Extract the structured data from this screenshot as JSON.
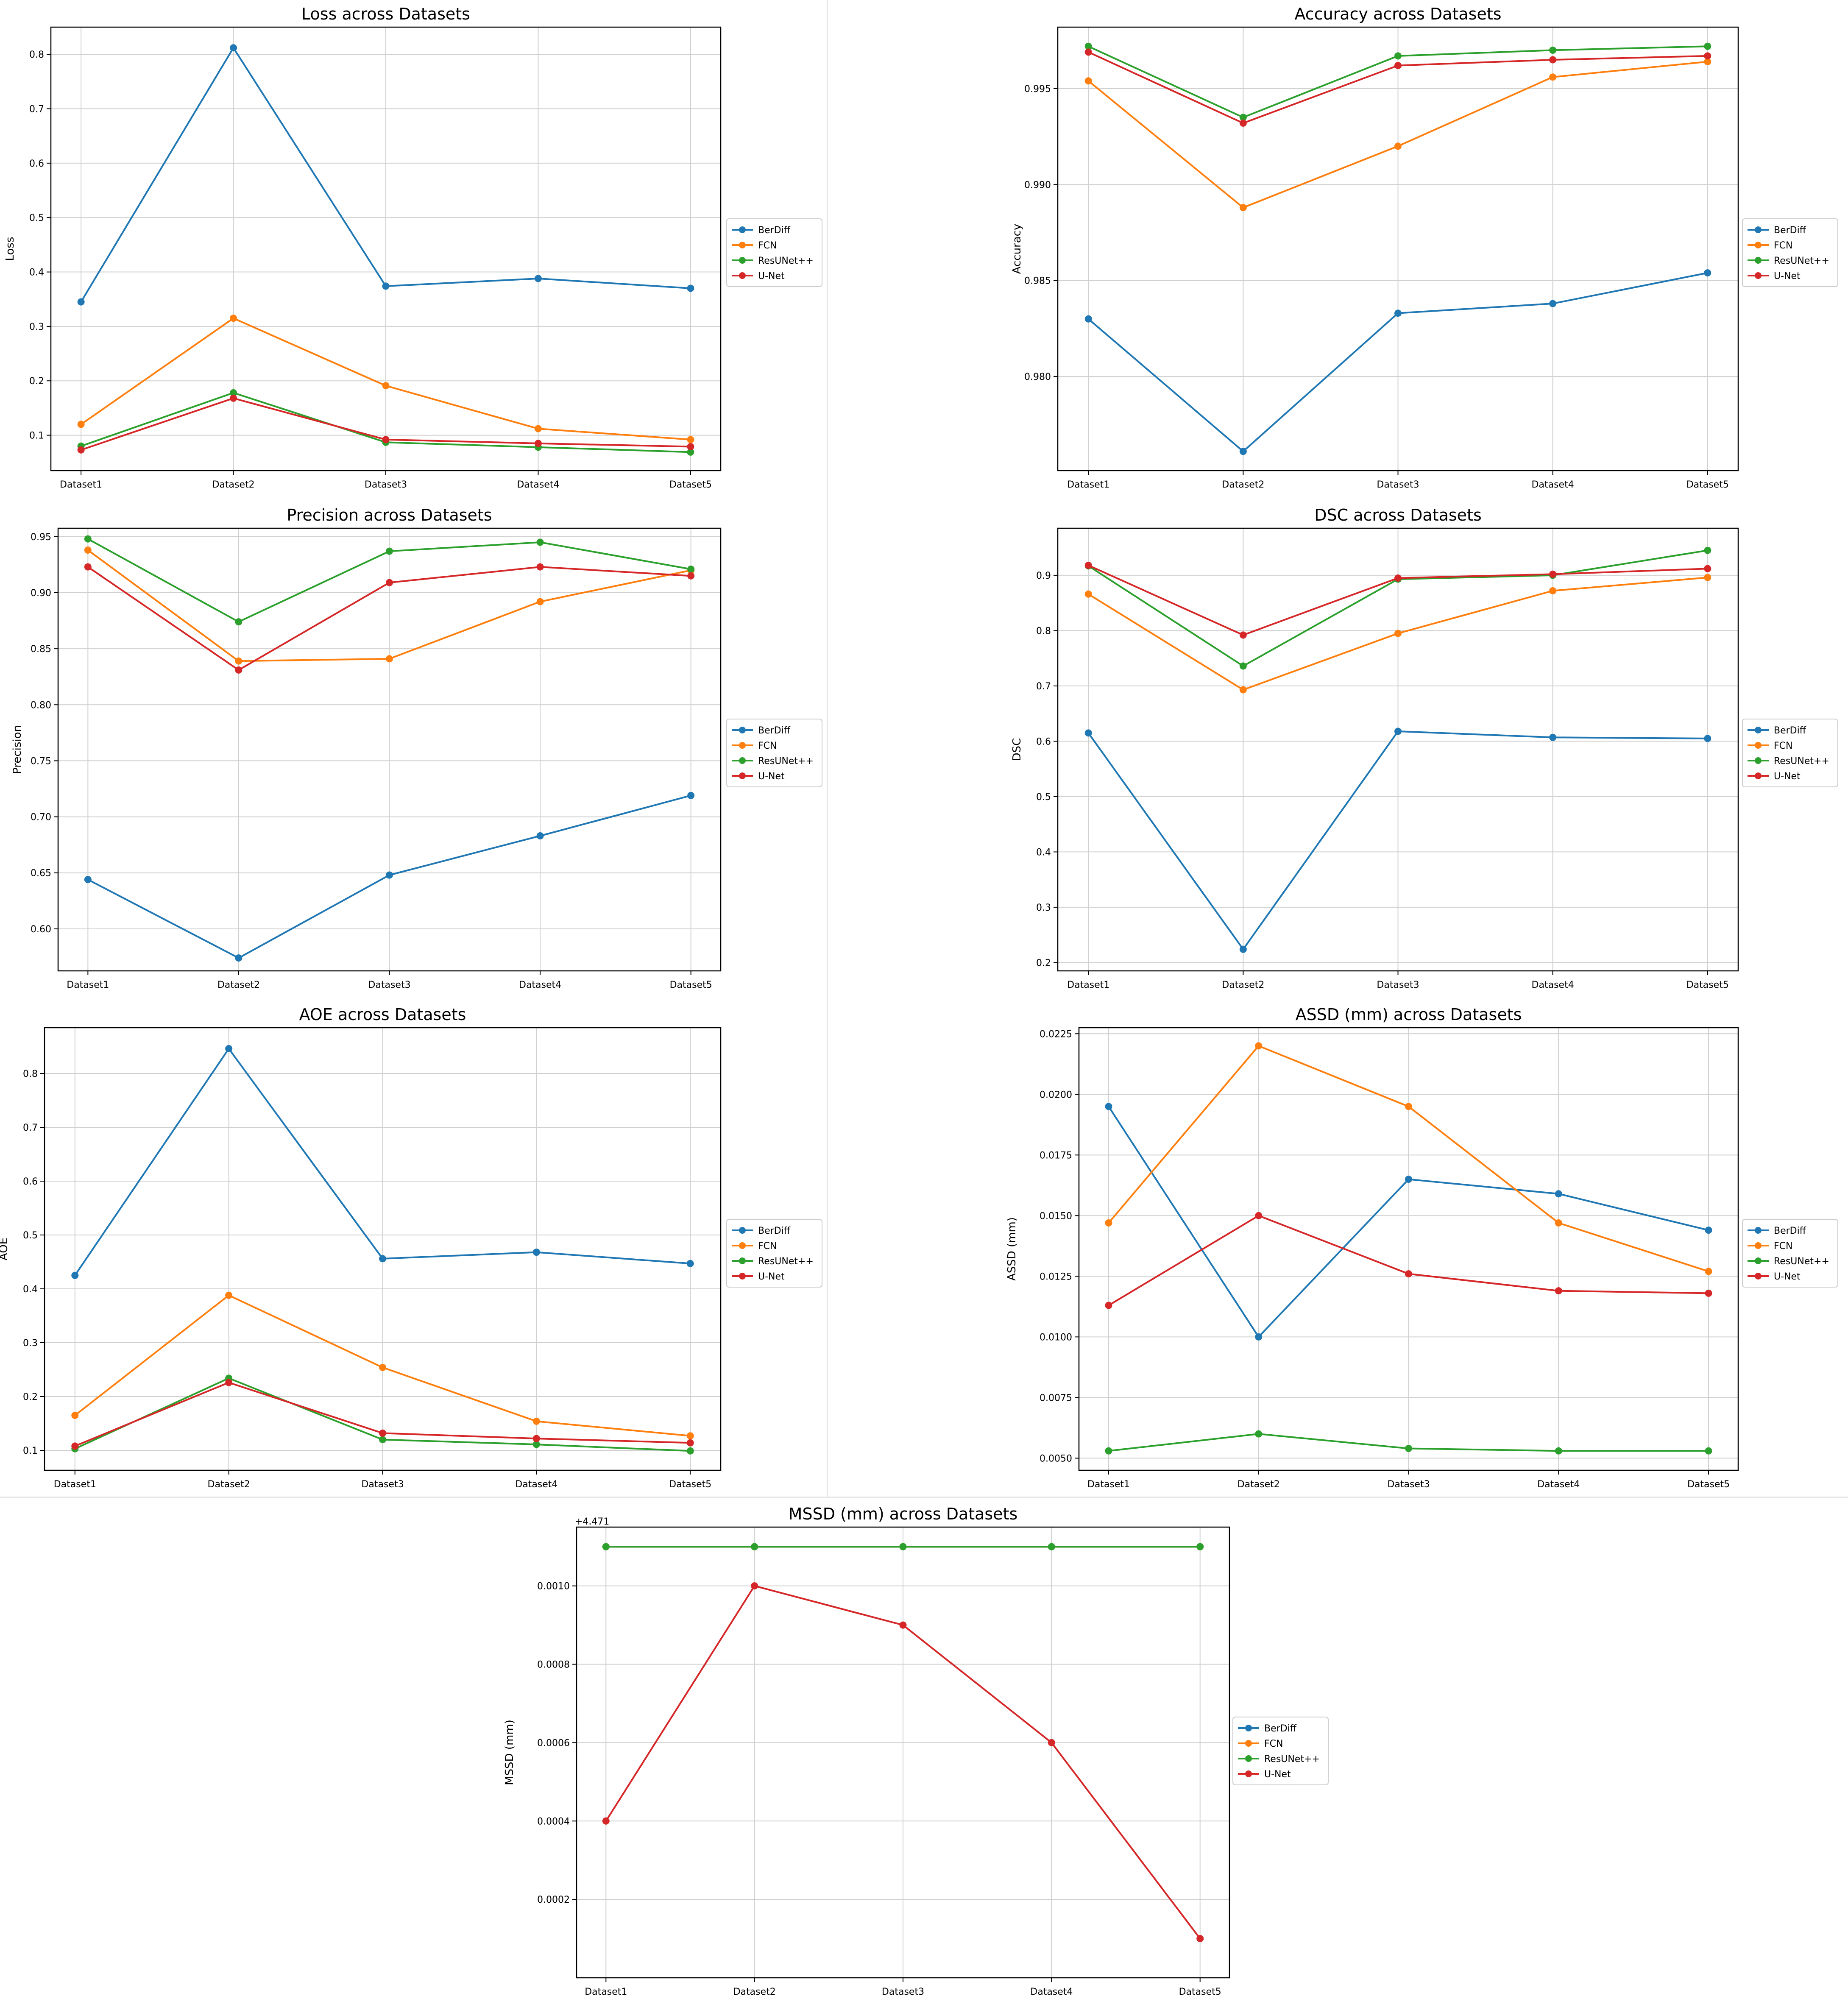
{
  "colors": {
    "BerDiff": "#1f77b4",
    "FCN": "#ff7f0e",
    "ResUNet++": "#2ca02c",
    "U-Net": "#d62728",
    "grid": "#d0d0d0",
    "axis": "#000000"
  },
  "chart_data": [
    {
      "type": "line",
      "title": "Loss across Datasets",
      "xlabel": "",
      "ylabel": "Loss",
      "categories": [
        "Dataset1",
        "Dataset2",
        "Dataset3",
        "Dataset4",
        "Dataset5"
      ],
      "ylim": [
        0.035,
        0.85
      ],
      "yticks": [
        0.1,
        0.2,
        0.3,
        0.4,
        0.5,
        0.6,
        0.7,
        0.8
      ],
      "ytick_labels": [
        "0.1",
        "0.2",
        "0.3",
        "0.4",
        "0.5",
        "0.6",
        "0.7",
        "0.8"
      ],
      "grid": true,
      "legend": "right",
      "offset_label": "",
      "series": [
        {
          "name": "BerDiff",
          "values": [
            0.345,
            0.812,
            0.374,
            0.388,
            0.37
          ]
        },
        {
          "name": "FCN",
          "values": [
            0.12,
            0.315,
            0.191,
            0.112,
            0.092
          ]
        },
        {
          "name": "ResUNet++",
          "values": [
            0.08,
            0.178,
            0.087,
            0.078,
            0.069
          ]
        },
        {
          "name": "U-Net",
          "values": [
            0.073,
            0.168,
            0.092,
            0.085,
            0.079
          ]
        }
      ]
    },
    {
      "type": "line",
      "title": "Accuracy across Datasets",
      "xlabel": "",
      "ylabel": "Accuracy",
      "categories": [
        "Dataset1",
        "Dataset2",
        "Dataset3",
        "Dataset4",
        "Dataset5"
      ],
      "ylim": [
        0.9751,
        0.9982
      ],
      "yticks": [
        0.98,
        0.985,
        0.99,
        0.995
      ],
      "ytick_labels": [
        "0.980",
        "0.985",
        "0.990",
        "0.995"
      ],
      "grid": true,
      "legend": "right",
      "offset_label": "",
      "series": [
        {
          "name": "BerDiff",
          "values": [
            0.983,
            0.9761,
            0.9833,
            0.9838,
            0.9854
          ]
        },
        {
          "name": "FCN",
          "values": [
            0.9954,
            0.9888,
            0.992,
            0.9956,
            0.9964
          ]
        },
        {
          "name": "ResUNet++",
          "values": [
            0.9972,
            0.9935,
            0.9967,
            0.997,
            0.9972
          ]
        },
        {
          "name": "U-Net",
          "values": [
            0.9969,
            0.9932,
            0.9962,
            0.9965,
            0.9967
          ]
        }
      ]
    },
    {
      "type": "line",
      "title": "Precision across Datasets",
      "xlabel": "",
      "ylabel": "Precision",
      "categories": [
        "Dataset1",
        "Dataset2",
        "Dataset3",
        "Dataset4",
        "Dataset5"
      ],
      "ylim": [
        0.5625,
        0.9575
      ],
      "yticks": [
        0.6,
        0.65,
        0.7,
        0.75,
        0.8,
        0.85,
        0.9,
        0.95
      ],
      "ytick_labels": [
        "0.60",
        "0.65",
        "0.70",
        "0.75",
        "0.80",
        "0.85",
        "0.90",
        "0.95"
      ],
      "grid": true,
      "legend": "right",
      "offset_label": "",
      "series": [
        {
          "name": "BerDiff",
          "values": [
            0.644,
            0.574,
            0.648,
            0.683,
            0.719
          ]
        },
        {
          "name": "FCN",
          "values": [
            0.938,
            0.839,
            0.841,
            0.892,
            0.92
          ]
        },
        {
          "name": "ResUNet++",
          "values": [
            0.948,
            0.874,
            0.937,
            0.945,
            0.921
          ]
        },
        {
          "name": "U-Net",
          "values": [
            0.923,
            0.831,
            0.909,
            0.923,
            0.915
          ]
        }
      ]
    },
    {
      "type": "line",
      "title": "DSC across Datasets",
      "xlabel": "",
      "ylabel": "DSC",
      "categories": [
        "Dataset1",
        "Dataset2",
        "Dataset3",
        "Dataset4",
        "Dataset5"
      ],
      "ylim": [
        0.185,
        0.985
      ],
      "yticks": [
        0.2,
        0.3,
        0.4,
        0.5,
        0.6,
        0.7,
        0.8,
        0.9
      ],
      "ytick_labels": [
        "0.2",
        "0.3",
        "0.4",
        "0.5",
        "0.6",
        "0.7",
        "0.8",
        "0.9"
      ],
      "grid": true,
      "legend": "right",
      "offset_label": "",
      "series": [
        {
          "name": "BerDiff",
          "values": [
            0.615,
            0.224,
            0.618,
            0.607,
            0.605
          ]
        },
        {
          "name": "FCN",
          "values": [
            0.866,
            0.693,
            0.795,
            0.872,
            0.896
          ]
        },
        {
          "name": "ResUNet++",
          "values": [
            0.917,
            0.736,
            0.893,
            0.9,
            0.945
          ]
        },
        {
          "name": "U-Net",
          "values": [
            0.918,
            0.792,
            0.895,
            0.902,
            0.912
          ]
        }
      ]
    },
    {
      "type": "line",
      "title": "AOE across Datasets",
      "xlabel": "",
      "ylabel": "AOE",
      "categories": [
        "Dataset1",
        "Dataset2",
        "Dataset3",
        "Dataset4",
        "Dataset5"
      ],
      "ylim": [
        0.063,
        0.885
      ],
      "yticks": [
        0.1,
        0.2,
        0.3,
        0.4,
        0.5,
        0.6,
        0.7,
        0.8
      ],
      "ytick_labels": [
        "0.1",
        "0.2",
        "0.3",
        "0.4",
        "0.5",
        "0.6",
        "0.7",
        "0.8"
      ],
      "grid": true,
      "legend": "right",
      "offset_label": "",
      "series": [
        {
          "name": "BerDiff",
          "values": [
            0.425,
            0.846,
            0.456,
            0.468,
            0.447
          ]
        },
        {
          "name": "FCN",
          "values": [
            0.165,
            0.388,
            0.254,
            0.154,
            0.127
          ]
        },
        {
          "name": "ResUNet++",
          "values": [
            0.103,
            0.234,
            0.12,
            0.111,
            0.099
          ]
        },
        {
          "name": "U-Net",
          "values": [
            0.108,
            0.226,
            0.132,
            0.122,
            0.114
          ]
        }
      ]
    },
    {
      "type": "line",
      "title": "ASSD (mm) across Datasets",
      "xlabel": "",
      "ylabel": "ASSD (mm)",
      "categories": [
        "Dataset1",
        "Dataset2",
        "Dataset3",
        "Dataset4",
        "Dataset5"
      ],
      "ylim": [
        0.0045,
        0.02275
      ],
      "yticks": [
        0.005,
        0.0075,
        0.01,
        0.0125,
        0.015,
        0.0175,
        0.02,
        0.0225
      ],
      "ytick_labels": [
        "0.0050",
        "0.0075",
        "0.0100",
        "0.0125",
        "0.0150",
        "0.0175",
        "0.0200",
        "0.0225"
      ],
      "grid": true,
      "legend": "right",
      "offset_label": "",
      "series": [
        {
          "name": "BerDiff",
          "values": [
            0.0195,
            0.01,
            0.0165,
            0.0159,
            0.0144
          ]
        },
        {
          "name": "FCN",
          "values": [
            0.0147,
            0.022,
            0.0195,
            0.0147,
            0.0127
          ]
        },
        {
          "name": "ResUNet++",
          "values": [
            0.0053,
            0.006,
            0.0054,
            0.0053,
            0.0053
          ]
        },
        {
          "name": "U-Net",
          "values": [
            0.0113,
            0.015,
            0.0126,
            0.0119,
            0.0118
          ]
        }
      ]
    },
    {
      "type": "line",
      "title": "MSSD (mm) across Datasets",
      "xlabel": "",
      "ylabel": "MSSD (mm)",
      "categories": [
        "Dataset1",
        "Dataset2",
        "Dataset3",
        "Dataset4",
        "Dataset5"
      ],
      "ylim": [
        0.0,
        0.00115
      ],
      "yticks": [
        0.0002,
        0.0004,
        0.0006,
        0.0008,
        0.001
      ],
      "ytick_labels": [
        "0.0002",
        "0.0004",
        "0.0006",
        "0.0008",
        "0.0010"
      ],
      "grid": true,
      "legend": "right",
      "offset_label": "+4.471",
      "series": [
        {
          "name": "BerDiff",
          "values": [
            0.0011,
            0.0011,
            0.0011,
            0.0011,
            0.0011
          ]
        },
        {
          "name": "FCN",
          "values": [
            0.0011,
            0.0011,
            0.0011,
            0.0011,
            0.0011
          ]
        },
        {
          "name": "ResUNet++",
          "values": [
            0.0011,
            0.0011,
            0.0011,
            0.0011,
            0.0011
          ]
        },
        {
          "name": "U-Net",
          "values": [
            0.0004,
            0.001,
            0.0009,
            0.0006,
            0.0001
          ]
        }
      ]
    }
  ]
}
